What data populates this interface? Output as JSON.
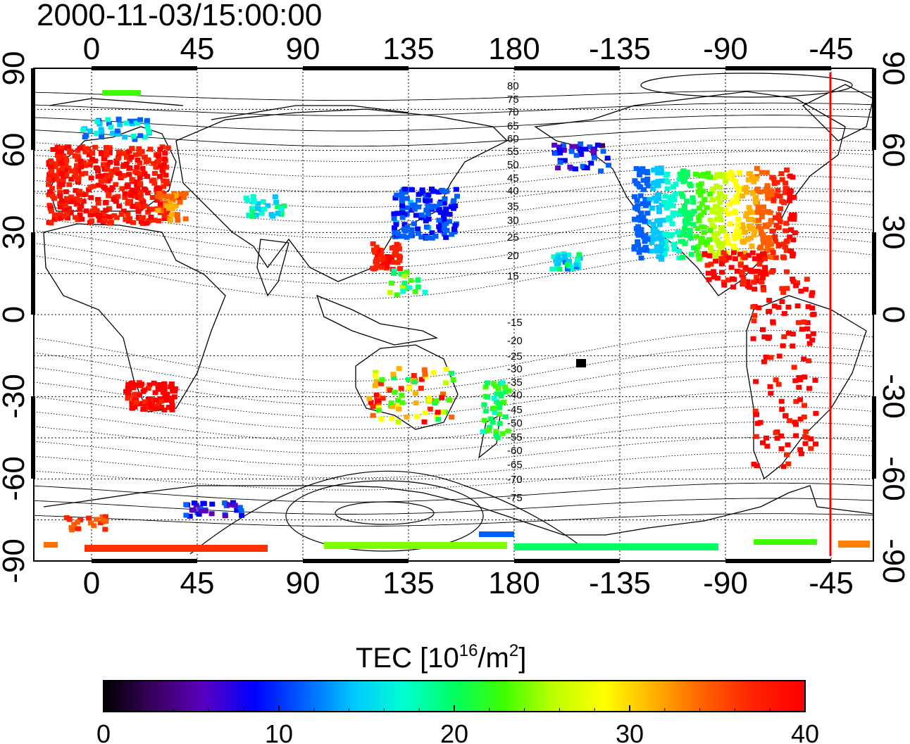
{
  "title": "2000-11-03/15:00:00",
  "top_axis_ticks": [
    "0",
    "45",
    "90",
    "135",
    "180",
    "-135",
    "-90",
    "-45"
  ],
  "bottom_axis_ticks": [
    "0",
    "45",
    "90",
    "135",
    "180",
    "-135",
    "-90",
    "-45"
  ],
  "left_axis_ticks": [
    "90",
    "60",
    "30",
    "0",
    "-30",
    "-60",
    "-90"
  ],
  "right_axis_ticks": [
    "90",
    "60",
    "30",
    "0",
    "-30",
    "-60",
    "-90"
  ],
  "contour_labels": [
    "80",
    "75",
    "70",
    "65",
    "60",
    "55",
    "50",
    "45",
    "40",
    "35",
    "30",
    "25",
    "20",
    "15",
    "-15",
    "-20",
    "-25",
    "-30",
    "-35",
    "-40",
    "-45",
    "-50",
    "-55",
    "-60",
    "-65",
    "-70",
    "-75"
  ],
  "colorbar": {
    "label_main": "TEC  [10",
    "label_sup1": "16",
    "label_mid": "/m",
    "label_sup2": "2",
    "label_end": "]",
    "ticks": [
      "0",
      "10",
      "20",
      "30",
      "40"
    ],
    "range": [
      0,
      40
    ],
    "colors": [
      "#000000",
      "#3a0060",
      "#5a00c0",
      "#0000ff",
      "#0060ff",
      "#00c8ff",
      "#00ffd0",
      "#00ff60",
      "#40ff00",
      "#c0ff00",
      "#ffff00",
      "#ffb000",
      "#ff6000",
      "#ff2000",
      "#ff0000"
    ]
  },
  "terminator_color": "#ff0000"
}
